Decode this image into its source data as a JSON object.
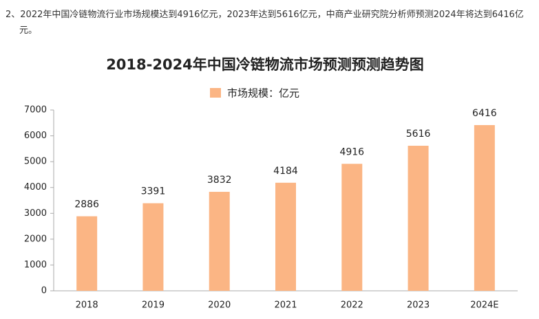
{
  "text": "2、2022年中国冷链物流行业市场规模达到4916亿元，2023年达到5616亿元，中商产业研究院分析师预测2024年将达到6416亿元。",
  "chart_data": {
    "type": "bar",
    "title": "2018-2024年中国冷链物流市场预测预测趋势图",
    "categories": [
      "2018",
      "2019",
      "2020",
      "2021",
      "2022",
      "2023",
      "2024E"
    ],
    "series": [
      {
        "name": "市场规模：亿元",
        "color": "#fbb584",
        "values": [
          2886,
          3391,
          3832,
          4184,
          4916,
          5616,
          6416
        ]
      }
    ],
    "ylim": [
      0,
      7000
    ],
    "yticks": [
      0,
      1000,
      2000,
      3000,
      4000,
      5000,
      6000,
      7000
    ],
    "grid": false
  }
}
